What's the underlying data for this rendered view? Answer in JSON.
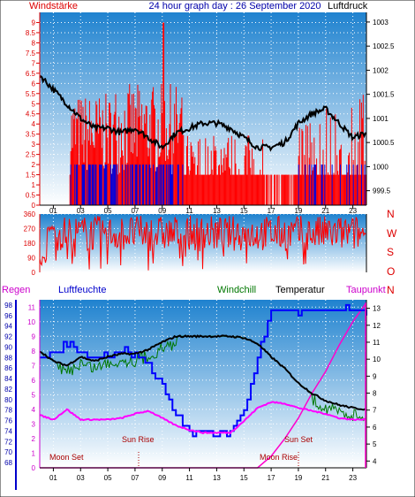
{
  "header": {
    "left_label": "Windstärke",
    "title": "24 hour graph day : 26 September 2020",
    "right_label": "Luftdruck"
  },
  "legend": {
    "regen": "Regen",
    "luftfeuchte": "Luftfeuchte",
    "windchill": "Windchill",
    "temperatur": "Temperatur",
    "taupunkt": "Taupunkt"
  },
  "annotations": {
    "moon_set": "Moon Set",
    "sun_rise": "Sun Rise",
    "moon_rise": "Moon Rise",
    "sun_set": "Sun Set"
  },
  "compass": [
    "N",
    "W",
    "S",
    "O",
    "N"
  ],
  "colors": {
    "wind": "#ff0000",
    "gust_blue": "#0000dd",
    "pressure": "#000000",
    "humidity": "#0000ff",
    "windchill": "#007700",
    "temperature": "#000000",
    "dewpoint": "#ff00ff",
    "rain": "#ff00cc",
    "grid": "#ffffff",
    "bg_top": "#1f82cf",
    "bg_bottom": "#ffffff"
  },
  "chart_data": [
    {
      "type": "bar",
      "name": "wind-pressure",
      "x_ticks": [
        "01",
        "03",
        "05",
        "07",
        "09",
        "11",
        "13",
        "15",
        "17",
        "19",
        "21",
        "23"
      ],
      "x_range": [
        0,
        24
      ],
      "y_left_ticks": [
        "0",
        "0.5",
        "1",
        "1.5",
        "2",
        "2.5",
        "3",
        "3.5",
        "4",
        "4.5",
        "5",
        "5.5",
        "6",
        "6.5",
        "7",
        "7.5",
        "8",
        "8.5",
        "9"
      ],
      "y_left_range": [
        0,
        9.5
      ],
      "y_right_ticks": [
        "999.5",
        "1000",
        "1000.5",
        "1001",
        "1001.5",
        "1002",
        "1002.5",
        "1003"
      ],
      "y_right_range": [
        999.2,
        1003.2
      ],
      "pressure_x": [
        0,
        1,
        2,
        3,
        4,
        5,
        6,
        7,
        8,
        9,
        10,
        11,
        12,
        13,
        14,
        15,
        16,
        17,
        18,
        19,
        20,
        21,
        22,
        23,
        24
      ],
      "pressure_y": [
        1001.9,
        1001.6,
        1001.3,
        1001.0,
        1000.8,
        1000.8,
        1000.7,
        1000.8,
        1000.6,
        1000.4,
        1000.7,
        1000.8,
        1000.9,
        1000.9,
        1000.8,
        1000.6,
        1000.4,
        1000.4,
        1000.5,
        1000.9,
        1001.1,
        1001.2,
        1000.9,
        1000.6,
        1000.7
      ]
    },
    {
      "type": "line",
      "name": "wind-direction",
      "y_ticks": [
        "0",
        "90",
        "180",
        "270",
        "360"
      ],
      "y_range": [
        0,
        360
      ],
      "x_range": [
        0,
        24
      ]
    },
    {
      "type": "line",
      "name": "humidity-temperature",
      "x_ticks": [
        "01",
        "03",
        "05",
        "07",
        "09",
        "11",
        "13",
        "15",
        "17",
        "19",
        "21",
        "23"
      ],
      "x_range": [
        0,
        24
      ],
      "y_humidity_ticks": [
        "68",
        "70",
        "72",
        "74",
        "76",
        "78",
        "80",
        "82",
        "84",
        "86",
        "88",
        "90",
        "92",
        "94",
        "96",
        "98"
      ],
      "y_temp_ticks": [
        "0",
        "1",
        "2",
        "3",
        "4",
        "5",
        "6",
        "7",
        "8",
        "9",
        "10",
        "11"
      ],
      "y_right_ticks": [
        "4",
        "5",
        "6",
        "7",
        "8",
        "9",
        "10",
        "11",
        "12",
        "13"
      ],
      "temperature_x": [
        0,
        1,
        2,
        3,
        4,
        5,
        6,
        7,
        8,
        9,
        10,
        11,
        12,
        13,
        14,
        15,
        16,
        17,
        18,
        19,
        20,
        21,
        22,
        23,
        24
      ],
      "temperature_y": [
        8.0,
        7.3,
        7.0,
        7.6,
        7.3,
        7.6,
        7.8,
        7.8,
        8.1,
        8.6,
        9.0,
        9.0,
        9.0,
        9.0,
        9.0,
        8.9,
        8.5,
        7.6,
        6.8,
        5.8,
        5.1,
        4.6,
        4.3,
        4.1,
        4.0
      ],
      "humidity_x": [
        0,
        1,
        2,
        3,
        4,
        5,
        6,
        7,
        8,
        9,
        10,
        11,
        12,
        13,
        14,
        15,
        16,
        17,
        18,
        19,
        20,
        21,
        22,
        23,
        24
      ],
      "humidity_y": [
        88,
        89,
        91,
        89,
        88,
        88,
        89,
        89,
        87,
        82,
        77,
        74,
        74,
        73,
        74,
        78,
        88,
        97,
        97,
        97,
        97,
        97,
        97,
        97,
        97
      ],
      "dewpoint_x": [
        0,
        1,
        2,
        3,
        4,
        5,
        6,
        7,
        8,
        9,
        10,
        11,
        12,
        13,
        14,
        15,
        16,
        17,
        18,
        19,
        20,
        21,
        22,
        23,
        24
      ],
      "dewpoint_y": [
        3.6,
        3.3,
        4.0,
        3.3,
        3.3,
        3.3,
        3.4,
        3.7,
        3.9,
        3.4,
        2.9,
        2.6,
        2.4,
        2.4,
        2.4,
        3.2,
        4.1,
        4.5,
        4.4,
        4.1,
        3.9,
        3.7,
        3.4,
        3.3,
        3.3
      ],
      "rain_x": [
        0,
        16,
        17,
        18,
        19,
        20,
        21,
        22,
        23,
        24
      ],
      "rain_y": [
        0,
        0,
        0.8,
        2.0,
        3.4,
        5.1,
        6.6,
        8.4,
        10.0,
        11.3
      ]
    }
  ]
}
